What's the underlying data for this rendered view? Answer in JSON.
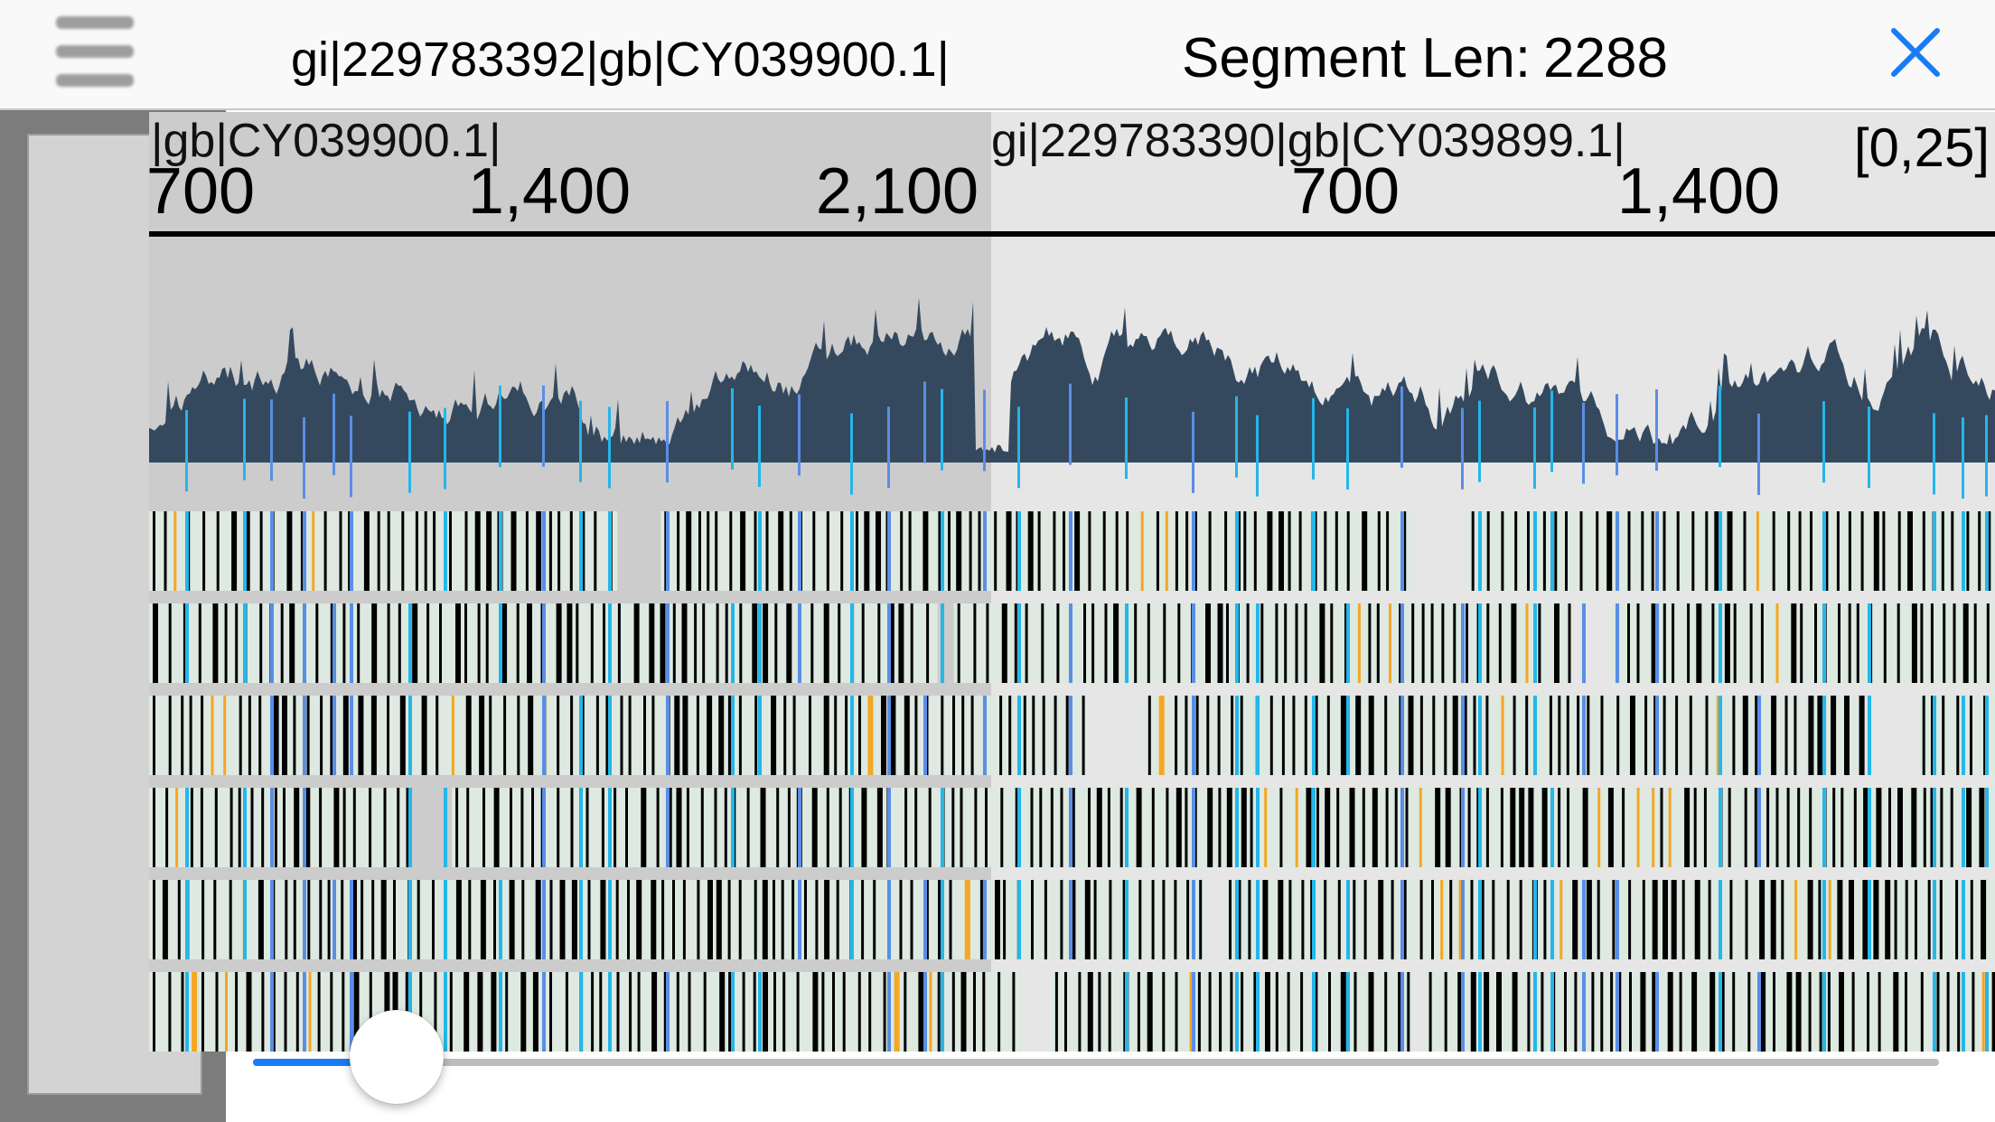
{
  "header": {
    "menu_icon": "hamburger-menu-icon",
    "title": "gi|229783392|gb|CY039900.1|",
    "segment_len_label": "Segment Len:",
    "segment_len_value": "2288",
    "close_icon": "close-x-icon",
    "close_color": "#1a7cf5"
  },
  "alignment": {
    "segments": [
      {
        "label": "|gb|CY039900.1|",
        "ticks": [
          {
            "value": 700,
            "text": "700"
          },
          {
            "value": 1400,
            "text": "1,400"
          },
          {
            "value": 2100,
            "text": "2,100"
          }
        ]
      },
      {
        "label": "gi|229783390|gb|CY039899.1|",
        "ticks": [
          {
            "value": 700,
            "text": "700"
          },
          {
            "value": 1400,
            "text": "1,400"
          }
        ]
      }
    ],
    "range_label": "[0,25]",
    "row_count": 6,
    "colors": {
      "coverage": "#34495e",
      "match_bar": "#000000",
      "row_background": "#dde9e1",
      "variant_orange": "#f5a623",
      "variant_cyan": "#25b6ea",
      "variant_blue": "#5a8ee6"
    }
  },
  "slider": {
    "value": 0.085,
    "fill_color": "#1a7cf5"
  }
}
